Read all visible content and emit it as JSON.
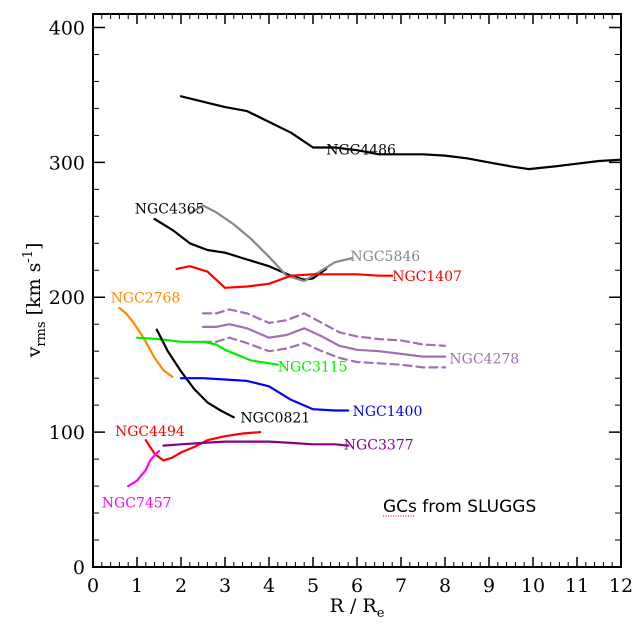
{
  "chart_data": {
    "type": "line",
    "xlabel": "R / R",
    "xlabel_sub": "e",
    "ylabel": "v",
    "ylabel_sub": "rms",
    "ylabel_unit_pre": " [km s",
    "ylabel_unit_sup": "-1",
    "ylabel_unit_post": "]",
    "xlim": [
      0,
      12
    ],
    "ylim": [
      0,
      410
    ],
    "xticks": [
      0,
      1,
      2,
      3,
      4,
      5,
      6,
      7,
      8,
      9,
      10,
      11,
      12
    ],
    "yticks": [
      0,
      100,
      200,
      300,
      400
    ],
    "grid": false,
    "annotation": "GCs from SLUGGS",
    "series": [
      {
        "name": "NGC4486",
        "color": "#000000",
        "style": "solid",
        "label_at": [
          5.3,
          306
        ],
        "x": [
          2.0,
          2.5,
          3.0,
          3.5,
          4.0,
          4.5,
          5.0,
          5.5,
          6.0,
          6.5,
          7.0,
          7.5,
          8.0,
          8.5,
          9.0,
          9.5,
          9.9,
          10.5,
          11.0,
          11.5,
          12.0
        ],
        "y": [
          349,
          345,
          341,
          338,
          330,
          322,
          311,
          311,
          309,
          306,
          306,
          306,
          305,
          303,
          300,
          297,
          295,
          297,
          299,
          301,
          302
        ]
      },
      {
        "name": "NGC4365",
        "color": "#000000",
        "style": "solid",
        "label_at": [
          0.95,
          262
        ],
        "x": [
          1.4,
          1.8,
          2.2,
          2.6,
          3.0,
          3.5,
          4.0,
          4.5,
          4.8,
          5.0,
          5.3
        ],
        "y": [
          258,
          250,
          240,
          235,
          233,
          228,
          223,
          216,
          213,
          214,
          221
        ]
      },
      {
        "name": "NGC5846",
        "color": "#888888",
        "style": "solid",
        "label_at": [
          5.85,
          227
        ],
        "x": [
          2.2,
          2.5,
          2.8,
          3.2,
          3.6,
          4.0,
          4.4,
          4.8,
          5.2,
          5.5,
          5.9
        ],
        "y": [
          262,
          268,
          263,
          254,
          243,
          230,
          216,
          212,
          220,
          226,
          229
        ]
      },
      {
        "name": "NGC1407",
        "color": "#ff0000",
        "style": "solid",
        "label_at": [
          6.8,
          212
        ],
        "x": [
          1.9,
          2.2,
          2.6,
          3.0,
          3.5,
          4.0,
          4.5,
          5.0,
          5.5,
          6.0,
          6.5,
          6.8
        ],
        "y": [
          221,
          223,
          219,
          207,
          208,
          210,
          216,
          217,
          217,
          217,
          216,
          216
        ]
      },
      {
        "name": "NGC4278",
        "color": "#a070b0",
        "style": "solid",
        "label_at": [
          8.1,
          151
        ],
        "x": [
          2.5,
          2.8,
          3.1,
          3.5,
          4.0,
          4.4,
          4.8,
          5.2,
          5.6,
          6.0,
          6.5,
          7.0,
          7.5,
          8.0
        ],
        "y": [
          178,
          178,
          180,
          177,
          170,
          172,
          177,
          171,
          164,
          161,
          160,
          158,
          156,
          156
        ]
      },
      {
        "name": "NGC4278 upper",
        "color": "#a070b0",
        "style": "dashed",
        "x": [
          2.5,
          2.8,
          3.1,
          3.5,
          4.0,
          4.4,
          4.8,
          5.2,
          5.6,
          6.0,
          6.5,
          7.0,
          7.5,
          8.0
        ],
        "y": [
          188,
          188,
          191,
          188,
          181,
          183,
          188,
          181,
          174,
          171,
          169,
          168,
          165,
          164
        ]
      },
      {
        "name": "NGC4278 lower",
        "color": "#a070b0",
        "style": "dashed",
        "x": [
          2.5,
          2.8,
          3.1,
          3.5,
          4.0,
          4.4,
          4.8,
          5.2,
          5.6,
          6.0,
          6.5,
          7.0,
          7.5,
          8.0
        ],
        "y": [
          167,
          167,
          170,
          166,
          160,
          162,
          166,
          160,
          155,
          152,
          151,
          150,
          148,
          148
        ]
      },
      {
        "name": "NGC2768",
        "color": "#ff8800",
        "style": "solid",
        "label_at": [
          0.4,
          196
        ],
        "x": [
          0.6,
          0.75,
          0.9,
          1.05,
          1.2,
          1.4,
          1.6,
          1.8
        ],
        "y": [
          192,
          188,
          182,
          175,
          167,
          155,
          146,
          141
        ]
      },
      {
        "name": "NGC3115",
        "color": "#00ee00",
        "style": "solid",
        "label_at": [
          4.2,
          145
        ],
        "x": [
          1.0,
          1.5,
          2.0,
          2.5,
          2.8,
          3.0,
          3.3,
          3.6,
          4.0,
          4.2
        ],
        "y": [
          170,
          169,
          167,
          167,
          165,
          161,
          157,
          153,
          151,
          150
        ]
      },
      {
        "name": "NGC0821",
        "color": "#000000",
        "style": "solid",
        "label_at": [
          3.35,
          107
        ],
        "x": [
          1.45,
          1.7,
          2.0,
          2.3,
          2.6,
          2.9,
          3.2
        ],
        "y": [
          176,
          160,
          145,
          132,
          122,
          116,
          111
        ]
      },
      {
        "name": "NGC1400",
        "color": "#0000ff",
        "style": "solid",
        "label_at": [
          5.9,
          112
        ],
        "x": [
          2.0,
          2.5,
          3.0,
          3.5,
          4.0,
          4.5,
          5.0,
          5.5,
          5.8
        ],
        "y": [
          140,
          140,
          139,
          138,
          134,
          124,
          117,
          116,
          116
        ]
      },
      {
        "name": "NGC4494",
        "color": "#ff0000",
        "style": "solid",
        "label_at": [
          0.5,
          97
        ],
        "x": [
          1.2,
          1.4,
          1.6,
          1.8,
          2.0,
          2.3,
          2.6,
          3.0,
          3.4,
          3.8
        ],
        "y": [
          94,
          84,
          79,
          81,
          85,
          89,
          94,
          97,
          99,
          100
        ]
      },
      {
        "name": "NGC3377",
        "color": "#880088",
        "style": "solid",
        "label_at": [
          5.7,
          87
        ],
        "x": [
          1.6,
          2.0,
          2.5,
          3.0,
          3.5,
          4.0,
          4.5,
          5.0,
          5.5,
          5.8
        ],
        "y": [
          90,
          91,
          92,
          93,
          93,
          93,
          92,
          91,
          91,
          90
        ]
      },
      {
        "name": "NGC7457",
        "color": "#ff00ff",
        "style": "solid",
        "label_at": [
          0.2,
          44
        ],
        "x": [
          0.8,
          1.0,
          1.2,
          1.3,
          1.4,
          1.5
        ],
        "y": [
          60,
          64,
          72,
          79,
          83,
          86
        ]
      }
    ]
  }
}
